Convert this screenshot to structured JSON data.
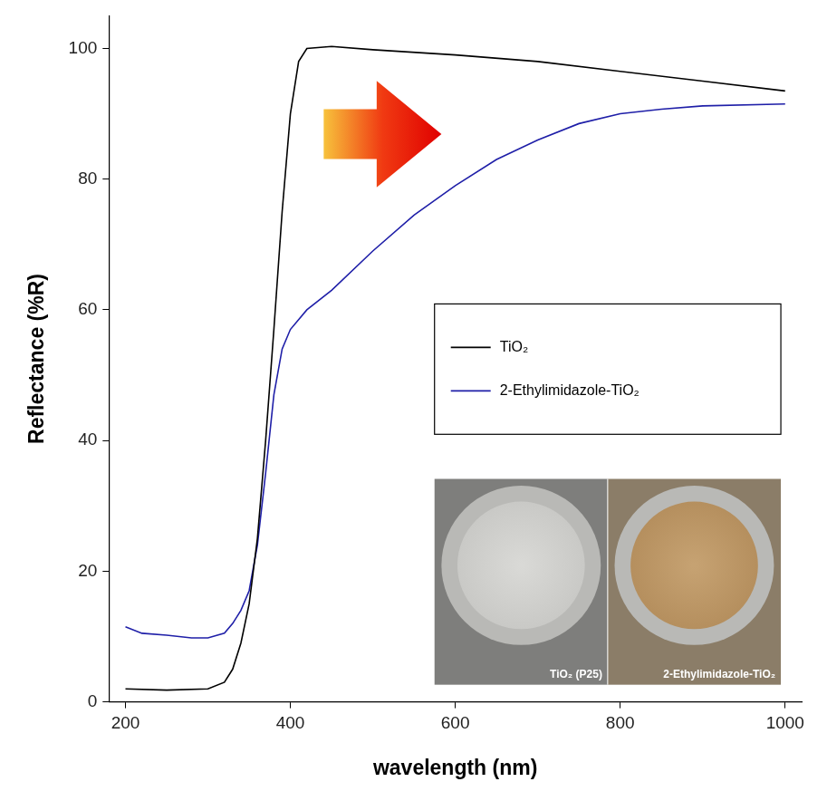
{
  "chart_data": {
    "type": "line",
    "x_label": "wavelength (nm)",
    "y_label": "Reflectance (%R)",
    "xlim": [
      180,
      1020
    ],
    "xticks": [
      200,
      400,
      600,
      800,
      1000
    ],
    "ylim": [
      0,
      105
    ],
    "yticks": [
      0,
      20,
      40,
      60,
      80,
      100
    ],
    "grid": false,
    "legend": "right",
    "series": [
      {
        "name": "TiO₂",
        "color": "#000000",
        "x": [
          200,
          250,
          300,
          320,
          330,
          340,
          350,
          360,
          370,
          380,
          390,
          400,
          410,
          420,
          450,
          500,
          600,
          700,
          800,
          900,
          1000
        ],
        "values": [
          2,
          1.8,
          2,
          3,
          5,
          9,
          15,
          25,
          40,
          57,
          75,
          90,
          98,
          100,
          100.3,
          99.8,
          99,
          98,
          96.5,
          95,
          93.5
        ]
      },
      {
        "name": "2-Ethylimidazole-TiO₂",
        "color": "#1f1fa8",
        "x": [
          200,
          220,
          250,
          280,
          300,
          320,
          330,
          340,
          350,
          360,
          370,
          380,
          390,
          400,
          420,
          450,
          500,
          550,
          600,
          650,
          700,
          750,
          800,
          850,
          900,
          1000
        ],
        "values": [
          11.5,
          10.5,
          10.2,
          9.8,
          9.8,
          10.5,
          12,
          14,
          17,
          24,
          35,
          47,
          54,
          57,
          60,
          63,
          69,
          74.5,
          79,
          83,
          86,
          88.5,
          90,
          90.7,
          91.2,
          91.5
        ]
      }
    ],
    "inset_labels": [
      "TiO₂ (P25)",
      "2-Ethylimidazole-TiO₂"
    ]
  }
}
